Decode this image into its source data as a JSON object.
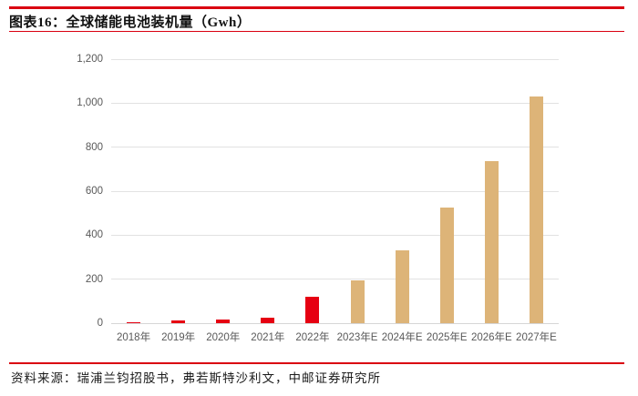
{
  "header": {
    "title": "图表16：全球储能电池装机量（Gwh）"
  },
  "footer": {
    "source": "资料来源：瑞浦兰钧招股书，弗若斯特沙利文，中邮证券研究所"
  },
  "colors": {
    "rule_red": "#da0011",
    "bar_actual_red": "#e60012",
    "bar_estimate_tan": "#ddb478",
    "gridline_gray": "#e2e2e2",
    "baseline_gray": "#d6d6d6",
    "axis_text_gray": "#595959"
  },
  "chart_data": {
    "type": "bar",
    "title": "全球储能电池装机量（Gwh）",
    "categories": [
      "2018年",
      "2019年",
      "2020年",
      "2021年",
      "2022年",
      "2023年E",
      "2024年E",
      "2025年E",
      "2026年E",
      "2027年E"
    ],
    "values": [
      5,
      11,
      16,
      25,
      122,
      196,
      330,
      527,
      737,
      1030
    ],
    "bar_colors": [
      "#e60012",
      "#e60012",
      "#e60012",
      "#e60012",
      "#e60012",
      "#ddb478",
      "#ddb478",
      "#ddb478",
      "#ddb478",
      "#ddb478"
    ],
    "xlabel": "",
    "ylabel": "",
    "ylim": [
      0,
      1200
    ],
    "ytick_step": 200,
    "ytick_labels": [
      "0",
      "200",
      "400",
      "600",
      "800",
      "1,000",
      "1,200"
    ],
    "grid": "horizontal-only",
    "legend": "none"
  }
}
